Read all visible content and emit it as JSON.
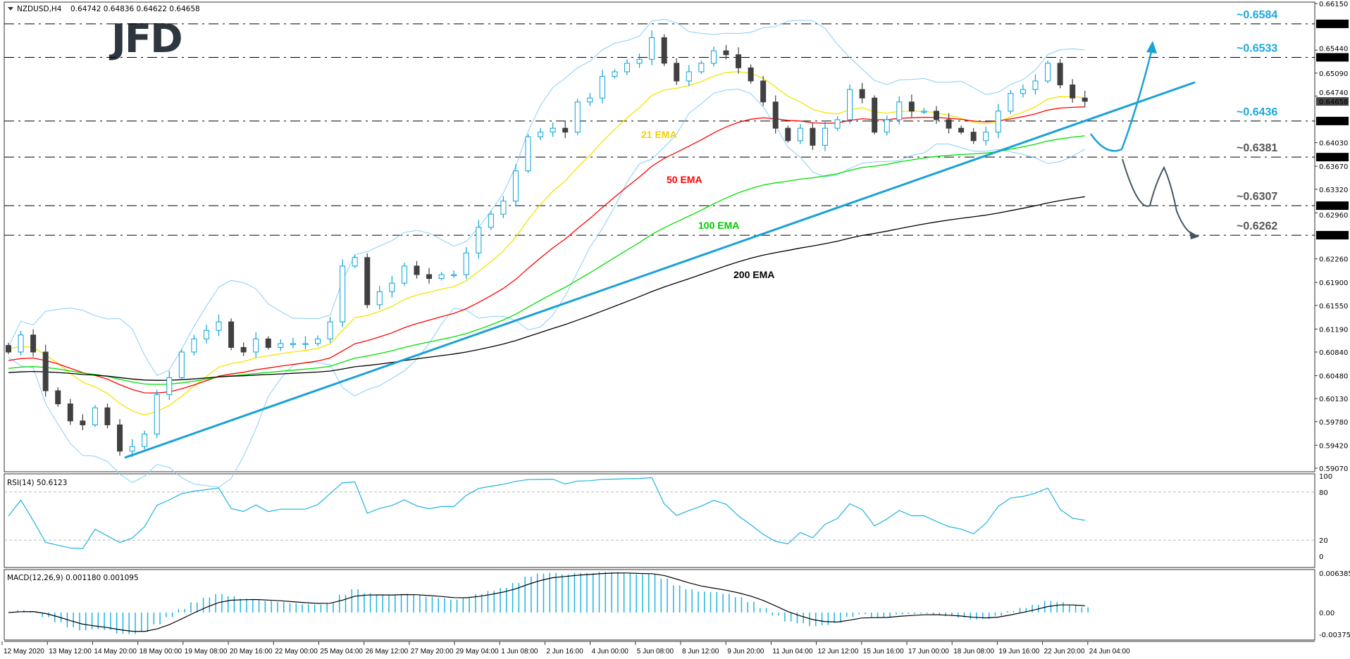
{
  "header": {
    "symbol": "NZDUSD,H4",
    "ohlc": "0.64742 0.64836 0.64622 0.64658",
    "logo": "JFD"
  },
  "rsi": {
    "label": "RSI(14) 50.6123",
    "ticks": [
      "100",
      "80",
      "20",
      "0"
    ]
  },
  "macd": {
    "label": "MACD(12,26,9) 0.001180 0.001095",
    "ticks": [
      "0.006385",
      "0.00",
      "-0.003757"
    ]
  },
  "colors": {
    "bull_outline": "#0aa3d8",
    "bear_fill": "#404040",
    "bollinger": "#87cefa",
    "ema21": "#f2e400",
    "ema50": "#ff0000",
    "ema100": "#00e000",
    "ema200": "#000000",
    "trendline": "#1ba1d6",
    "rsi": "#1eb4e0",
    "macd_hist": "#1eb4e0",
    "macd_signal": "#000000",
    "level_blue": "#1aa8dc",
    "level_gray": "#555555"
  },
  "chart_data": {
    "type": "candlestick",
    "title": "NZDUSD,H4",
    "ylim": [
      0.5907,
      0.6615
    ],
    "y_ticks": [
      "0.66150",
      "0.65440",
      "0.65090",
      "0.64740",
      "0.64030",
      "0.63670",
      "0.63320",
      "0.62960",
      "0.62260",
      "0.61900",
      "0.61550",
      "0.61190",
      "0.60840",
      "0.60480",
      "0.60130",
      "0.59780",
      "0.59420",
      "0.59070"
    ],
    "current_price": "0.64658",
    "x_ticks": [
      "12 May 2020",
      "13 May 12:00",
      "14 May 20:00",
      "18 May 00:00",
      "19 May 08:00",
      "20 May 16:00",
      "22 May 00:00",
      "25 May 04:00",
      "26 May 12:00",
      "27 May 20:00",
      "29 May 04:00",
      "1 Jun 08:00",
      "2 Jun 16:00",
      "4 Jun 00:00",
      "5 Jun 08:00",
      "8 Jun 12:00",
      "9 Jun 20:00",
      "11 Jun 04:00",
      "12 Jun 12:00",
      "15 Jun 16:00",
      "17 Jun 00:00",
      "18 Jun 08:00",
      "19 Jun 16:00",
      "22 Jun 20:00",
      "24 Jun 04:00"
    ],
    "close": [
      0.6084,
      0.611,
      0.6084,
      0.6025,
      0.6005,
      0.5979,
      0.5973,
      0.5999,
      0.5973,
      0.5933,
      0.594,
      0.5959,
      0.6019,
      0.6045,
      0.6084,
      0.6104,
      0.6117,
      0.613,
      0.6091,
      0.6084,
      0.6104,
      0.6091,
      0.6097,
      0.6097,
      0.6097,
      0.6104,
      0.613,
      0.6215,
      0.6228,
      0.6156,
      0.6176,
      0.6189,
      0.6215,
      0.6202,
      0.6196,
      0.6202,
      0.6202,
      0.6235,
      0.6274,
      0.6294,
      0.6314,
      0.636,
      0.6412,
      0.6419,
      0.6425,
      0.6419,
      0.6465,
      0.6471,
      0.6504,
      0.6511,
      0.6524,
      0.653,
      0.6563,
      0.6524,
      0.6497,
      0.6511,
      0.6524,
      0.6543,
      0.6537,
      0.6517,
      0.6497,
      0.6465,
      0.6425,
      0.6406,
      0.6425,
      0.6399,
      0.6425,
      0.6438,
      0.6484,
      0.6471,
      0.6419,
      0.6438,
      0.6465,
      0.6451,
      0.6451,
      0.6438,
      0.6425,
      0.6419,
      0.6406,
      0.6419,
      0.6451,
      0.6478,
      0.6484,
      0.6497,
      0.6524,
      0.6491,
      0.6471,
      0.6466
    ],
    "indicators": [
      {
        "name": "21 EMA",
        "period": 21
      },
      {
        "name": "50 EMA",
        "period": 50
      },
      {
        "name": "100 EMA",
        "period": 100
      },
      {
        "name": "200 EMA",
        "period": 200
      }
    ],
    "levels": [
      {
        "value": "0.65840",
        "label": "~0.6584",
        "tone": "blue"
      },
      {
        "value": "0.65330",
        "label": "~0.6533",
        "tone": "blue"
      },
      {
        "value": "0.64360",
        "label": "~0.6436",
        "tone": "blue"
      },
      {
        "value": "0.63810",
        "label": "~0.6381",
        "tone": "gray"
      },
      {
        "value": "0.63070",
        "label": "~0.6307",
        "tone": "gray"
      },
      {
        "value": "0.62620",
        "label": "~0.6262",
        "tone": "gray"
      }
    ],
    "trendline": {
      "from": [
        9.4,
        0.5923
      ],
      "to": [
        95.9,
        0.6495
      ]
    },
    "grid": false
  }
}
